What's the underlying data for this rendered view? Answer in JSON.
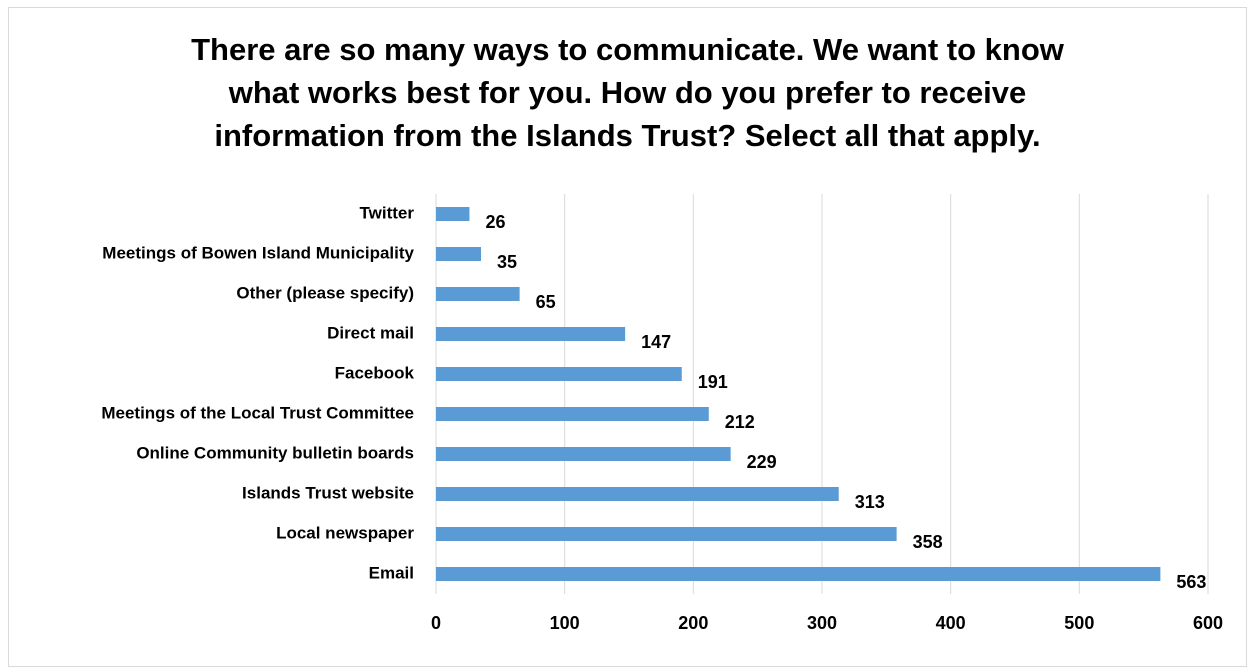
{
  "chart_data": {
    "type": "bar",
    "orientation": "horizontal",
    "title": "There are so many ways to communicate. We want to know what works best for you. How do you prefer to receive information from the Islands Trust? Select all that apply.",
    "title_lines": [
      "There are so many ways to communicate. We want to know",
      "what works best for you. How do you prefer to receive",
      "information from the Islands Trust? Select all that apply."
    ],
    "categories": [
      "Twitter",
      "Meetings of Bowen Island Municipality",
      "Other (please specify)",
      "Direct mail",
      "Facebook",
      "Meetings of the Local Trust Committee",
      "Online Community bulletin boards",
      "Islands Trust website",
      "Local newspaper",
      "Email"
    ],
    "values": [
      26,
      35,
      65,
      147,
      191,
      212,
      229,
      313,
      358,
      563
    ],
    "xlim": [
      0,
      600
    ],
    "xticks": [
      0,
      100,
      200,
      300,
      400,
      500,
      600
    ],
    "xlabel": "",
    "ylabel": "",
    "grid": "vertical",
    "bar_color": "#5b9bd5",
    "grid_color": "#d9d9d9",
    "data_labels": true
  }
}
